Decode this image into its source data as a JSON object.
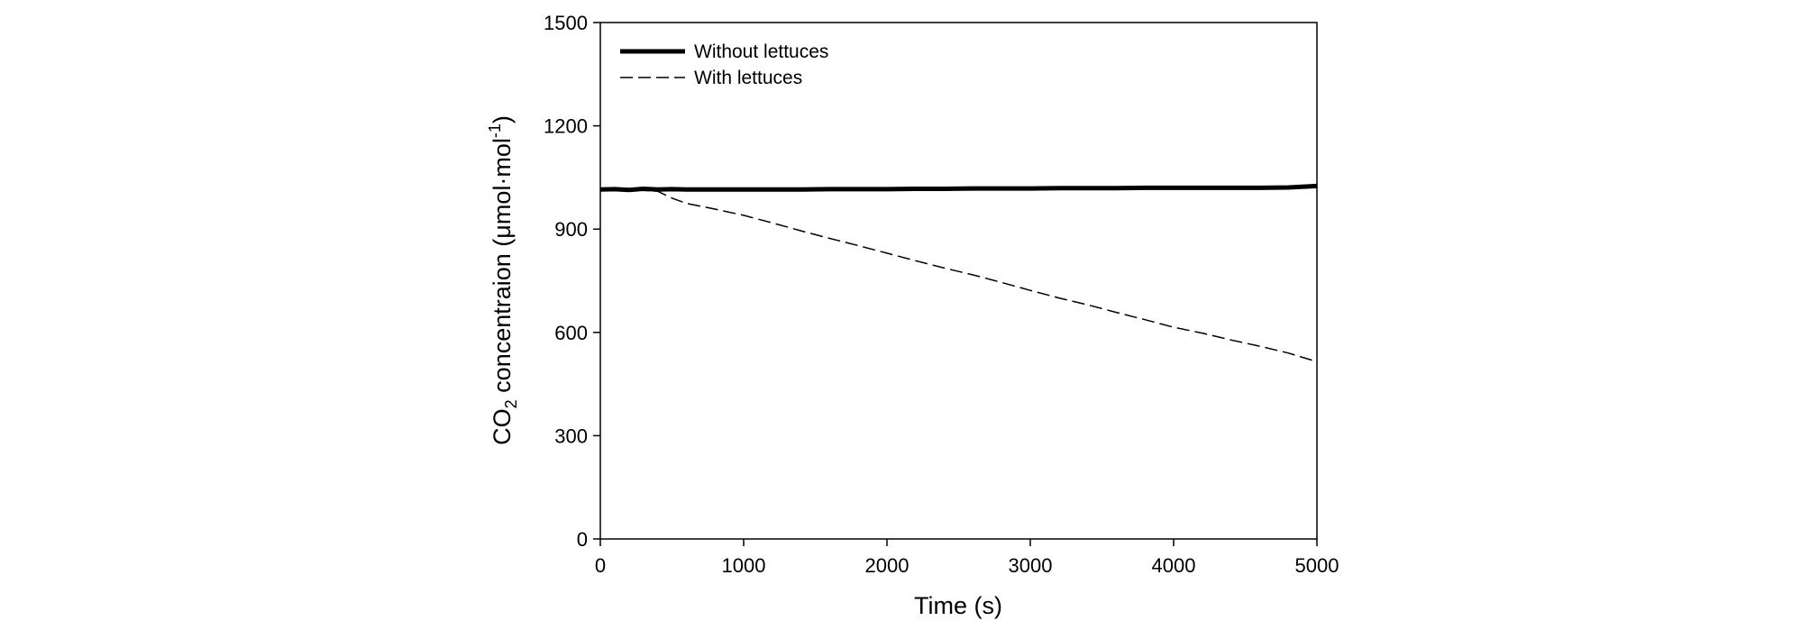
{
  "chart_data": {
    "type": "line",
    "xlabel": "Time (s)",
    "ylabel": {
      "prefix": "CO",
      "subscript": "2",
      "middle": " concentraion (μmol·mol",
      "superscript": "-1",
      "suffix": ")"
    },
    "xlim": [
      0,
      5000
    ],
    "ylim": [
      0,
      1500
    ],
    "xticks": [
      0,
      1000,
      2000,
      3000,
      4000,
      5000
    ],
    "yticks": [
      0,
      300,
      600,
      900,
      1200,
      1500
    ],
    "grid": false,
    "legend_position": "top-left",
    "series": [
      {
        "name": "Without lettuces",
        "style": "solid-thick",
        "color": "#000000",
        "x": [
          0,
          100,
          200,
          300,
          400,
          500,
          600,
          800,
          1000,
          1200,
          1400,
          1600,
          1800,
          2000,
          2200,
          2400,
          2600,
          2800,
          3000,
          3200,
          3400,
          3600,
          3800,
          4000,
          4200,
          4400,
          4600,
          4800,
          5000
        ],
        "y": [
          1015,
          1016,
          1014,
          1017,
          1015,
          1016,
          1015,
          1015,
          1015,
          1015,
          1015,
          1016,
          1016,
          1016,
          1017,
          1017,
          1018,
          1018,
          1018,
          1019,
          1019,
          1019,
          1020,
          1020,
          1020,
          1020,
          1020,
          1021,
          1025
        ]
      },
      {
        "name": "With lettuces",
        "style": "dashed",
        "color": "#000000",
        "x": [
          0,
          200,
          400,
          500,
          600,
          800,
          1000,
          1200,
          1400,
          1600,
          1800,
          2000,
          2200,
          2400,
          2600,
          2800,
          3000,
          3200,
          3400,
          3600,
          3800,
          4000,
          4200,
          4400,
          4600,
          4800,
          5000
        ],
        "y": [
          1015,
          1015,
          1010,
          990,
          975,
          958,
          940,
          918,
          895,
          873,
          852,
          830,
          808,
          787,
          767,
          745,
          722,
          700,
          680,
          658,
          637,
          615,
          598,
          578,
          560,
          540,
          515
        ]
      }
    ]
  }
}
